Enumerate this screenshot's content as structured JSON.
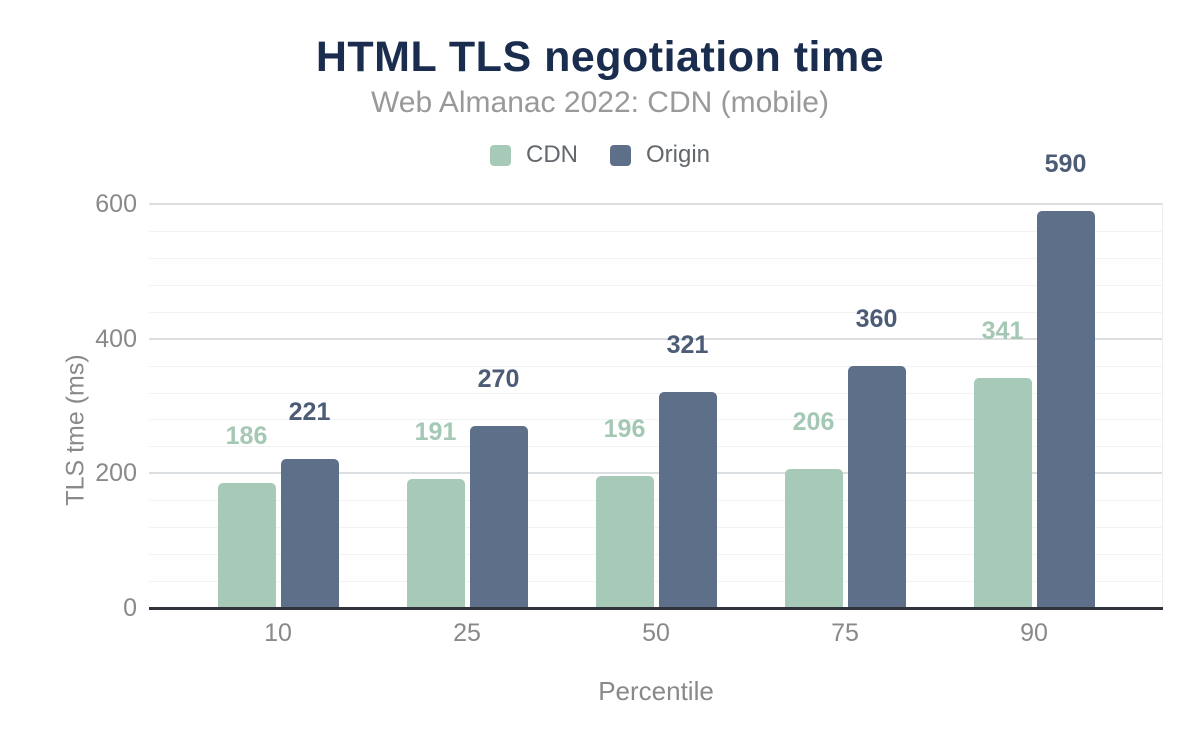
{
  "title": "HTML TLS negotiation time",
  "subtitle": "Web Almanac 2022: CDN (mobile)",
  "chart_data": {
    "type": "bar",
    "title": "HTML TLS negotiation time",
    "subtitle": "Web Almanac 2022: CDN (mobile)",
    "categories": [
      "10",
      "25",
      "50",
      "75",
      "90"
    ],
    "series": [
      {
        "name": "CDN",
        "color": "#a7c9b8",
        "label_color": "#a4c8b4",
        "values": [
          186,
          191,
          196,
          206,
          341
        ]
      },
      {
        "name": "Origin",
        "color": "#5e7089",
        "label_color": "#4c5b76",
        "values": [
          221,
          270,
          321,
          360,
          590
        ]
      }
    ],
    "xlabel": "Percentile",
    "ylabel": "TLS tme (ms)",
    "ylim": [
      0,
      600
    ],
    "yticks": [
      0,
      200,
      400,
      600
    ],
    "minor_grid_step": 40,
    "grid": true,
    "legend_position": "top",
    "value_labels": true
  },
  "colors": {
    "title": "#1b2d4f",
    "subtitle": "#98999b",
    "legend_text": "#63686e",
    "axis_text": "#87898b",
    "gridline_minor": "#f1f2f4",
    "gridline_major": "#dcdfe2",
    "baseline": "#30343a",
    "background": "#ffffff"
  }
}
